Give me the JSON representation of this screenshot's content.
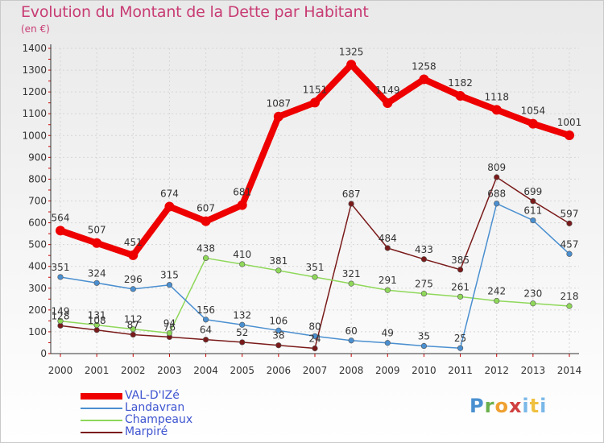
{
  "title": "Evolution du Montant de la Dette par Habitant",
  "subtitle": "(en €)",
  "logo_text": "Proxiti",
  "chart_data": {
    "type": "line",
    "title": "Evolution du Montant de la Dette par Habitant",
    "subtitle": "(en €)",
    "xlabel": "",
    "ylabel": "",
    "x": [
      "2000",
      "2001",
      "2002",
      "2003",
      "2004",
      "2005",
      "2006",
      "2007",
      "2008",
      "2009",
      "2010",
      "2011",
      "2012",
      "2013",
      "2014"
    ],
    "ylim": [
      0,
      1400
    ],
    "yticks": [
      "0",
      "100",
      "200",
      "300",
      "400",
      "500",
      "600",
      "700",
      "800",
      "900",
      "1000",
      "1100",
      "1200",
      "1300",
      "1400"
    ],
    "grid": true,
    "legend": "bottom-left",
    "series": [
      {
        "name": "VAL-D'IZé",
        "color": "#ee0000",
        "values": [
          564,
          507,
          451,
          674,
          607,
          681,
          1087,
          1151,
          1325,
          1149,
          1258,
          1182,
          1118,
          1054,
          1001
        ],
        "labels": [
          "564",
          "507",
          "451",
          "674",
          "607",
          "681",
          "1087",
          "1151",
          "1325",
          "1149",
          "1258",
          "1182",
          "1118",
          "1054",
          "1001"
        ]
      },
      {
        "name": "Landavran",
        "color": "#4a8fd0",
        "values": [
          351,
          324,
          296,
          315,
          156,
          132,
          106,
          80,
          60,
          49,
          35,
          25,
          688,
          611,
          457
        ],
        "labels": [
          "351",
          "324",
          "296",
          "315",
          "156",
          "132",
          "106",
          "80",
          "60",
          "49",
          "35",
          "25",
          "688",
          "611",
          "457"
        ]
      },
      {
        "name": "Champeaux",
        "color": "#8fd85a",
        "values": [
          149,
          131,
          112,
          94,
          438,
          410,
          381,
          351,
          321,
          291,
          275,
          261,
          242,
          230,
          218
        ],
        "labels": [
          "149",
          "131",
          "112",
          "94",
          "438",
          "410",
          "381",
          "351",
          "321",
          "291",
          "275",
          "261",
          "242",
          "230",
          "218"
        ]
      },
      {
        "name": "Marpiré",
        "color": "#7a1a1a",
        "values": [
          128,
          108,
          87,
          76,
          64,
          52,
          38,
          24,
          687,
          484,
          433,
          385,
          809,
          699,
          597
        ],
        "labels": [
          "128",
          "108",
          "87",
          "76",
          "64",
          "52",
          "38",
          "24",
          "687",
          "484",
          "433",
          "385",
          "809",
          "699",
          "597"
        ]
      }
    ]
  }
}
